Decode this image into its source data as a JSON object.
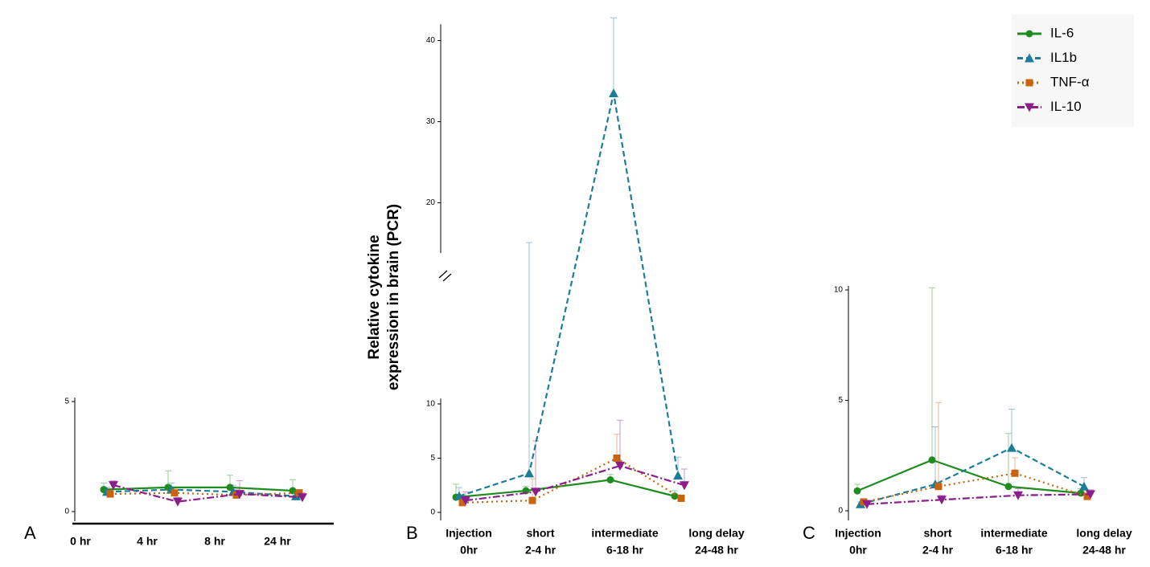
{
  "chart_data": [
    {
      "type": "line",
      "label": "A",
      "categories": [
        "0 hr",
        "4 hr",
        "8 hr",
        "24 hr"
      ],
      "ylim": [
        0,
        5
      ],
      "yticks": [
        0,
        5
      ],
      "series": [
        {
          "color": "#1e8c1e",
          "marker": "circle",
          "dash": "solid",
          "values": [
            1.0,
            1.1,
            1.1,
            0.95
          ],
          "errors": [
            0.3,
            0.75,
            0.55,
            0.5
          ]
        },
        {
          "color": "#1b7d99",
          "marker": "triangle",
          "dash": "dashed",
          "values": [
            0.9,
            1.0,
            0.9,
            0.7
          ],
          "errors": [
            0.2,
            0.3,
            0.3,
            0.2
          ]
        },
        {
          "color": "#c8640f",
          "marker": "square",
          "dash": "dotted",
          "values": [
            0.8,
            0.85,
            0.75,
            0.85
          ],
          "errors": [
            0.25,
            0.2,
            0.25,
            0.15
          ]
        },
        {
          "color": "#8c1e8c",
          "marker": "triangle-down",
          "dash": "dashdot",
          "values": [
            1.2,
            0.45,
            0.8,
            0.65
          ],
          "errors": [
            0.2,
            0.2,
            0.6,
            0.2
          ]
        }
      ]
    },
    {
      "type": "line",
      "label": "B",
      "categories": [
        [
          "Injection",
          "0hr"
        ],
        [
          "short",
          "2-4 hr"
        ],
        [
          "intermediate",
          "6-18 hr"
        ],
        [
          "long delay",
          "24-48 hr"
        ]
      ],
      "ylabel": [
        "Relative cytokine",
        "expression in brain (PCR)"
      ],
      "ylim": [
        0,
        42
      ],
      "ybreak": [
        10.5,
        15
      ],
      "yticks": [
        0,
        5,
        10,
        20,
        30,
        40
      ],
      "series": [
        {
          "name": "IL-6",
          "color": "#1e8c1e",
          "marker": "circle",
          "dash": "solid",
          "values": [
            1.4,
            2.0,
            3.0,
            1.5
          ],
          "errors": [
            1.2,
            0.4,
            0.5,
            0.5
          ]
        },
        {
          "name": "IL1b",
          "color": "#1b7d99",
          "marker": "triangle",
          "dash": "dashed",
          "values": [
            1.5,
            3.6,
            33.5,
            3.4
          ],
          "errors": [
            0.8,
            11.5,
            9.3,
            1.7
          ]
        },
        {
          "name": "TNF-α",
          "color": "#c8640f",
          "marker": "square",
          "dash": "dotted",
          "values": [
            0.9,
            1.1,
            5.0,
            1.3
          ],
          "errors": [
            0.3,
            2.0,
            2.2,
            0.3
          ]
        },
        {
          "name": "IL-10",
          "color": "#8c1e8c",
          "marker": "triangle-down",
          "dash": "dashdot",
          "values": [
            1.1,
            1.9,
            4.3,
            2.5
          ],
          "errors": [
            0.8,
            4.7,
            4.2,
            1.5
          ]
        }
      ]
    },
    {
      "type": "line",
      "label": "C",
      "categories": [
        [
          "Injection",
          "0hr"
        ],
        [
          "short",
          "2-4 hr"
        ],
        [
          "intermediate",
          "6-18 hr"
        ],
        [
          "long delay",
          "24-48 hr"
        ]
      ],
      "ylim": [
        0,
        10
      ],
      "yticks": [
        0,
        5,
        10
      ],
      "series": [
        {
          "color": "#1e8c1e",
          "marker": "circle",
          "dash": "solid",
          "values": [
            0.9,
            2.3,
            1.1,
            0.8
          ],
          "errors": [
            0.3,
            7.8,
            2.4,
            0.2
          ]
        },
        {
          "color": "#1b7d99",
          "marker": "triangle",
          "dash": "dashed",
          "values": [
            0.3,
            1.2,
            2.85,
            1.1
          ],
          "errors": [
            0.1,
            2.6,
            1.75,
            0.4
          ]
        },
        {
          "color": "#c8640f",
          "marker": "square",
          "dash": "dotted",
          "values": [
            0.4,
            1.1,
            1.7,
            0.65
          ],
          "errors": [
            0.1,
            3.8,
            0.7,
            0.2
          ]
        },
        {
          "color": "#8c1e8c",
          "marker": "triangle-down",
          "dash": "dashdot",
          "values": [
            0.3,
            0.5,
            0.7,
            0.75
          ],
          "errors": [
            0.1,
            0.2,
            0.3,
            0.2
          ]
        }
      ]
    }
  ]
}
